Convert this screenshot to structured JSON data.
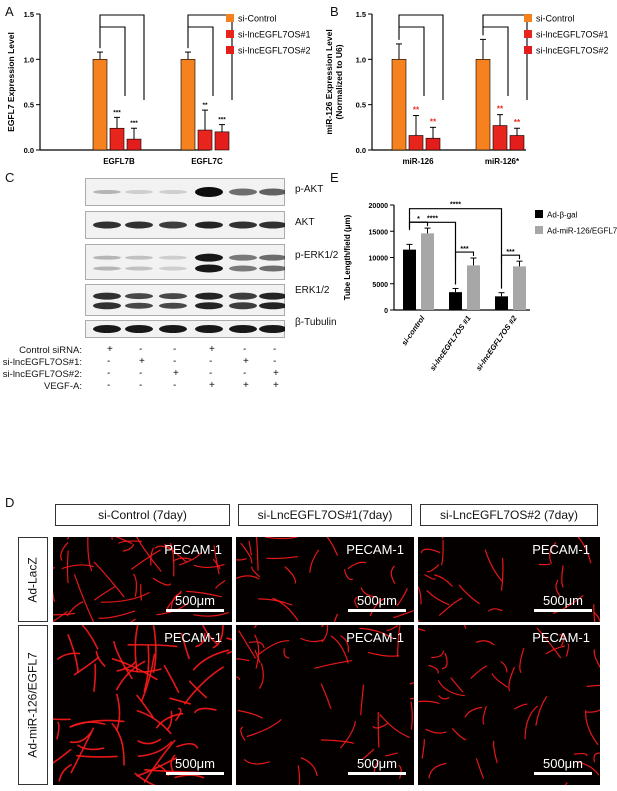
{
  "panels": {
    "A": "A",
    "B": "B",
    "C": "C",
    "D": "D",
    "E": "E"
  },
  "colors": {
    "control": "#f5821f",
    "os1": "#e8251c",
    "os2": "#e31d1c",
    "sig_red": "#e8251c",
    "black": "#000000",
    "grey": "#a7a7a7"
  },
  "chart_data": [
    {
      "panel": "A",
      "type": "bar",
      "categories": [
        "EGFL7B",
        "EGFL7C"
      ],
      "ylabel": "EGFL7 Expression Level",
      "ylim": [
        0,
        1.5
      ],
      "yticks": [
        0.0,
        0.5,
        1.0,
        1.5
      ],
      "series": [
        {
          "name": "si-Control",
          "values": [
            1.0,
            1.0
          ],
          "errors": [
            0.08,
            0.08
          ]
        },
        {
          "name": "si-lncEGFL7OS#1",
          "values": [
            0.24,
            0.22
          ],
          "errors": [
            0.12,
            0.22
          ]
        },
        {
          "name": "si-lncEGFL7OS#2",
          "values": [
            0.12,
            0.2
          ],
          "errors": [
            0.12,
            0.08
          ]
        }
      ],
      "significance": [
        [
          "***",
          "***"
        ],
        [
          "**",
          "***"
        ]
      ]
    },
    {
      "panel": "B",
      "type": "bar",
      "categories": [
        "miR-126",
        "miR-126*"
      ],
      "ylabel": "miR-126 Expression Level",
      "ylabel2": "(Normalized to U6)",
      "ylim": [
        0,
        1.5
      ],
      "yticks": [
        0.0,
        0.5,
        1.0,
        1.5
      ],
      "series": [
        {
          "name": "si-Control",
          "values": [
            1.0,
            1.0
          ],
          "errors": [
            0.17,
            0.22
          ]
        },
        {
          "name": "si-lncEGFL7OS#1",
          "values": [
            0.16,
            0.27
          ],
          "errors": [
            0.22,
            0.12
          ]
        },
        {
          "name": "si-lncEGFL7OS#2",
          "values": [
            0.13,
            0.16
          ],
          "errors": [
            0.12,
            0.08
          ]
        }
      ],
      "significance": [
        [
          "**",
          "**"
        ],
        [
          "**",
          "**"
        ]
      ]
    },
    {
      "panel": "E",
      "type": "bar",
      "categories": [
        "si-control",
        "si-lncEGFL7OS #1",
        "si-lncEGFL7OS #2"
      ],
      "ylabel": "Tube  Length/field (μm)",
      "ylim": [
        0,
        20000
      ],
      "yticks": [
        0,
        5000,
        10000,
        15000,
        20000
      ],
      "series": [
        {
          "name": "Ad-β-gal",
          "values": [
            11500,
            3400,
            2600
          ],
          "errors": [
            1000,
            700,
            700
          ]
        },
        {
          "name": "Ad-miR-126/EGFL7",
          "values": [
            14600,
            8500,
            8300
          ],
          "errors": [
            1000,
            1400,
            1000
          ]
        }
      ],
      "pair_significance": [
        "*",
        "***",
        "***"
      ],
      "cross_significance": [
        "****",
        "****"
      ]
    }
  ],
  "blot": {
    "labels": [
      "p-AKT",
      "AKT",
      "p-ERK1/2",
      "ERK1/2",
      "β-Tubulin"
    ],
    "rows": [
      {
        "label": "Control siRNA:",
        "signs": [
          "+",
          "-",
          "-",
          "+",
          "-",
          "-"
        ]
      },
      {
        "label": "si-lncEGFL7OS#1:",
        "signs": [
          "-",
          "+",
          "-",
          "-",
          "+",
          "-"
        ]
      },
      {
        "label": "si-lncEGFL7OS#2:",
        "signs": [
          "-",
          "-",
          "+",
          "-",
          "-",
          "+"
        ]
      },
      {
        "label": "VEGF-A:",
        "signs": [
          "-",
          "-",
          "-",
          "+",
          "+",
          "+"
        ]
      }
    ]
  },
  "microscopy": {
    "columns": [
      "si-Control (7day)",
      "si-LncEGFL7OS#1(7day)",
      "si-LncEGFL7OS#2 (7day)"
    ],
    "rows": [
      "Ad-LacZ",
      "Ad-miR-126/EGFL7"
    ],
    "stain": "PECAM-1",
    "scale": "500μm"
  }
}
